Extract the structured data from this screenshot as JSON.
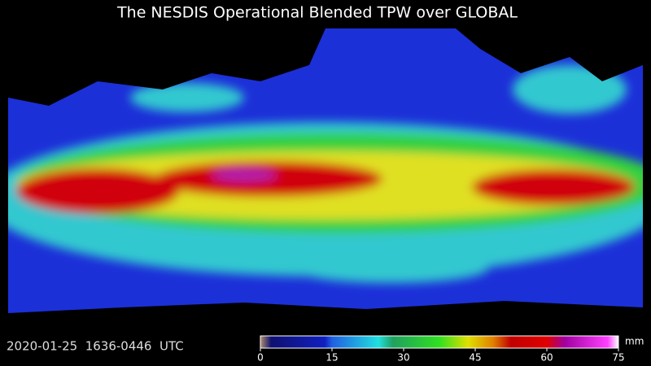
{
  "title": "The NESDIS Operational Blended TPW over GLOBAL",
  "timestamp": "2020-01-25  1636-0446  UTC",
  "colorbar": {
    "range": [
      0,
      75
    ],
    "ticks": [
      0,
      15,
      30,
      45,
      60,
      75
    ],
    "unit": "mm"
  }
}
